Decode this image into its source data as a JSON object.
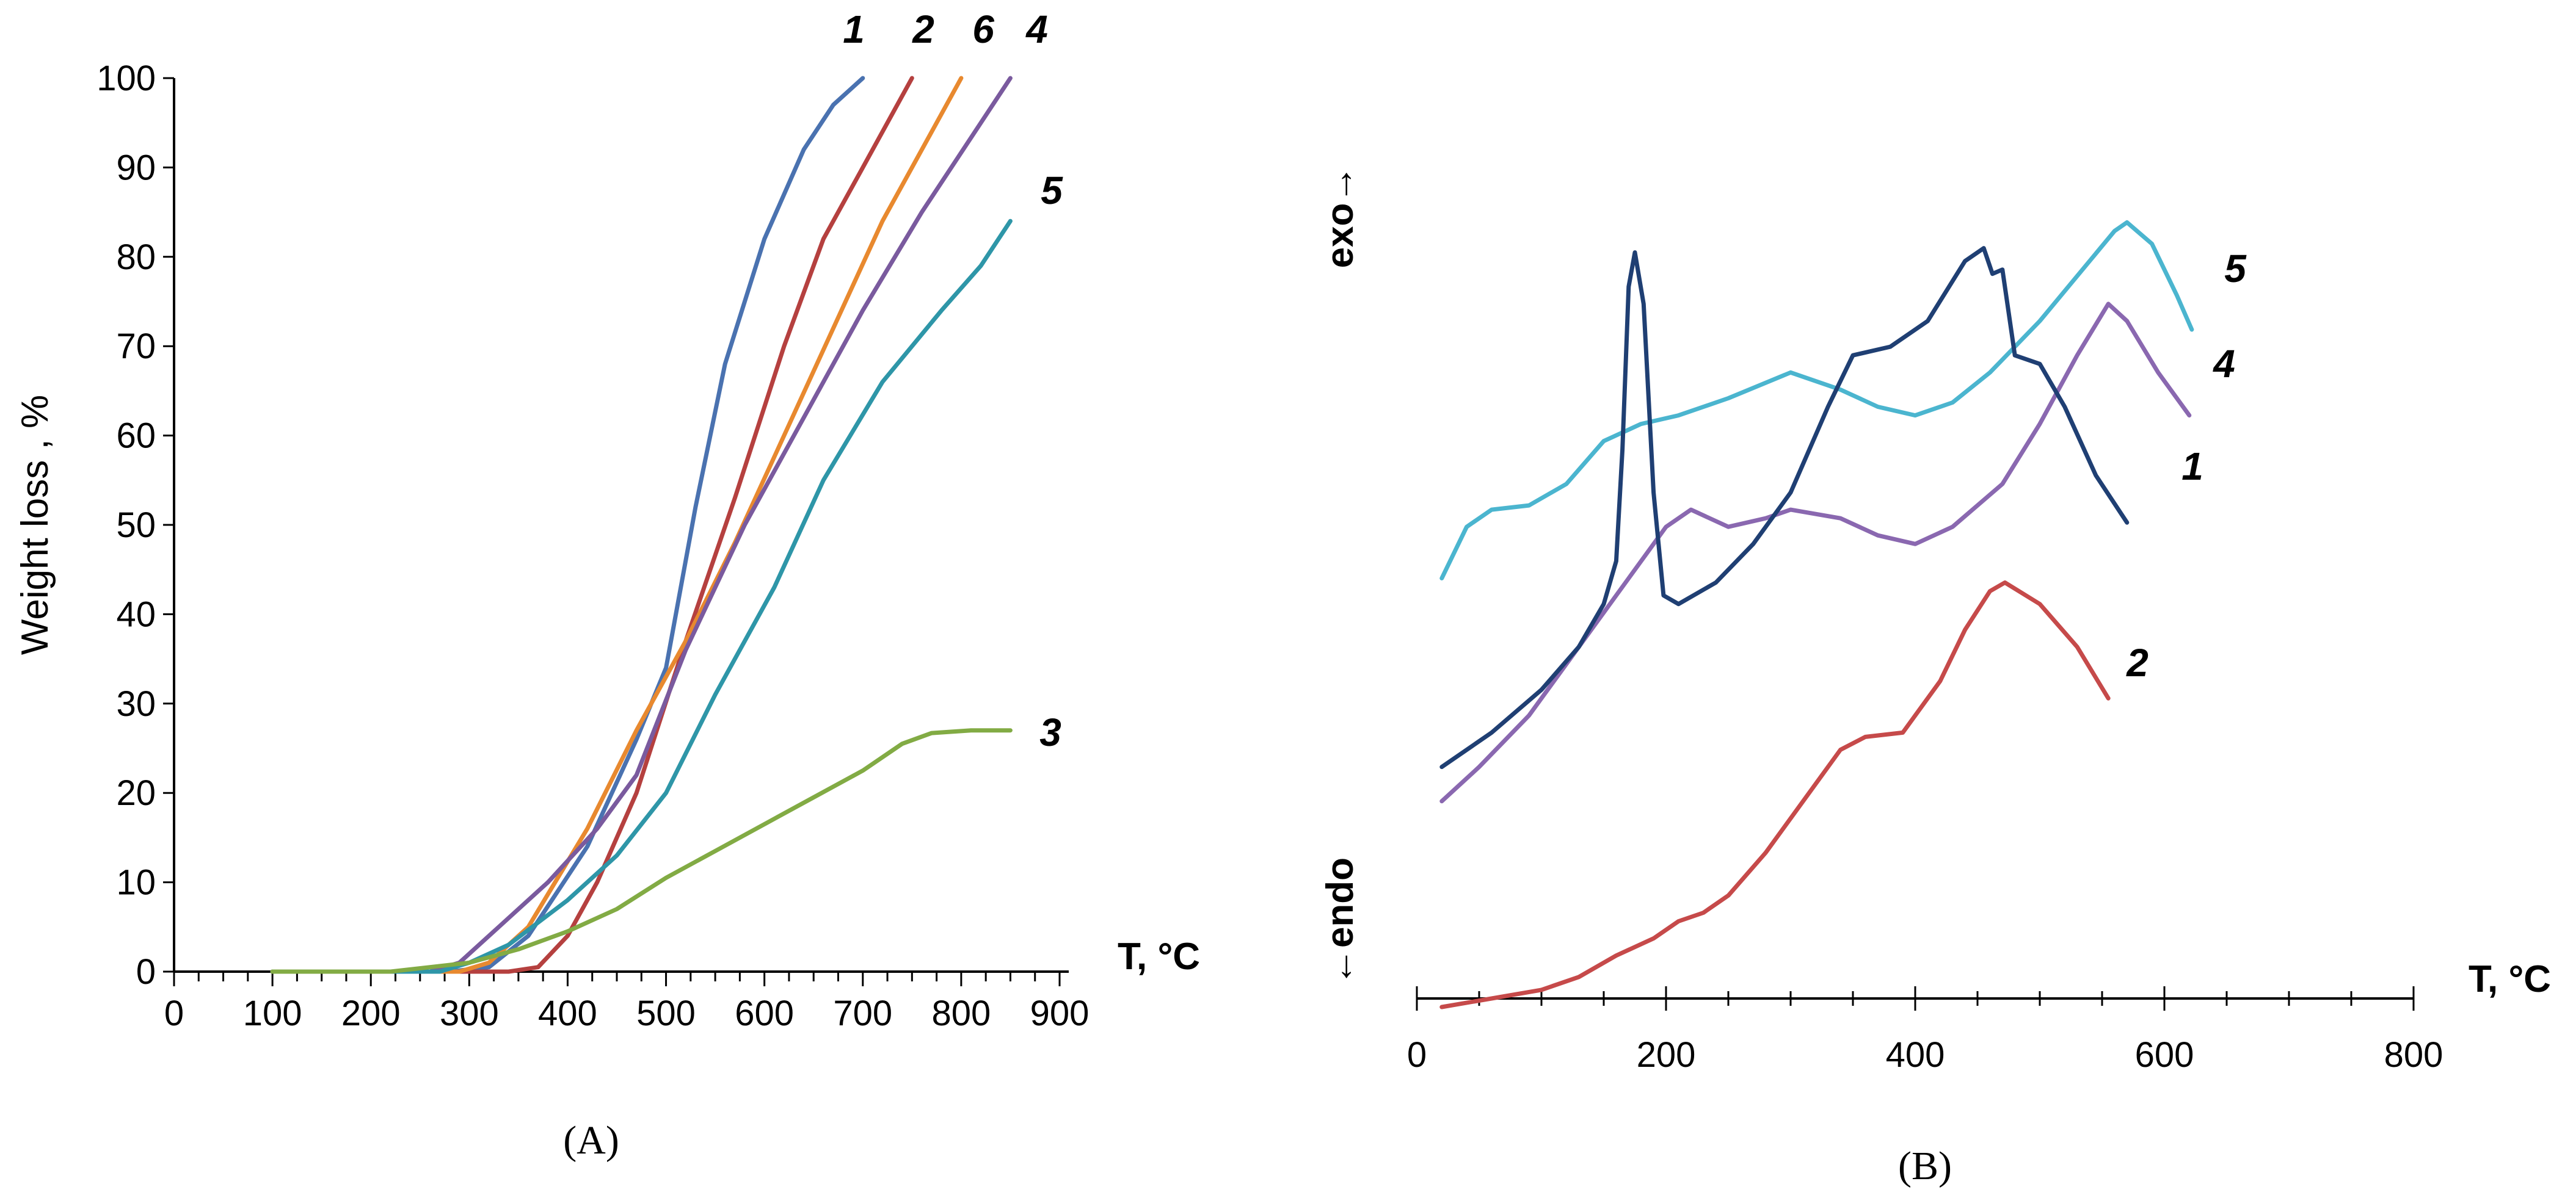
{
  "chart_data": [
    {
      "panel": "(A)",
      "type": "line",
      "title": "",
      "xlabel": "T, °C",
      "ylabel": "Weight loss , %",
      "xlim": [
        0,
        900
      ],
      "ylim": [
        0,
        100
      ],
      "x_ticks": [
        0,
        100,
        200,
        300,
        400,
        500,
        600,
        700,
        800,
        900
      ],
      "y_ticks": [
        0,
        10,
        20,
        30,
        40,
        50,
        60,
        70,
        80,
        90,
        100
      ],
      "grid": false,
      "series": [
        {
          "name": "1",
          "color": "#4a72b0",
          "points": [
            [
              100,
              0
            ],
            [
              280,
              0
            ],
            [
              320,
              0.5
            ],
            [
              360,
              4
            ],
            [
              420,
              14
            ],
            [
              470,
              26
            ],
            [
              500,
              34
            ],
            [
              530,
              52
            ],
            [
              560,
              68
            ],
            [
              600,
              82
            ],
            [
              640,
              92
            ],
            [
              670,
              97
            ],
            [
              700,
              100
            ]
          ]
        },
        {
          "name": "2",
          "color": "#b5403f",
          "points": [
            [
              100,
              0
            ],
            [
              340,
              0
            ],
            [
              370,
              0.5
            ],
            [
              400,
              4
            ],
            [
              430,
              10
            ],
            [
              470,
              20
            ],
            [
              520,
              37
            ],
            [
              570,
              53
            ],
            [
              620,
              70
            ],
            [
              660,
              82
            ],
            [
              700,
              90
            ],
            [
              730,
              96
            ],
            [
              750,
              100
            ]
          ]
        },
        {
          "name": "6",
          "color": "#e8892f",
          "points": [
            [
              100,
              0
            ],
            [
              290,
              0
            ],
            [
              320,
              1
            ],
            [
              360,
              5
            ],
            [
              420,
              16
            ],
            [
              470,
              27
            ],
            [
              520,
              37
            ],
            [
              570,
              48
            ],
            [
              620,
              60
            ],
            [
              670,
              72
            ],
            [
              720,
              84
            ],
            [
              770,
              94
            ],
            [
              800,
              100
            ]
          ]
        },
        {
          "name": "4",
          "color": "#7a5a9e",
          "points": [
            [
              100,
              0
            ],
            [
              260,
              0
            ],
            [
              290,
              1
            ],
            [
              330,
              5
            ],
            [
              380,
              10
            ],
            [
              430,
              16
            ],
            [
              470,
              22
            ],
            [
              520,
              36
            ],
            [
              580,
              50
            ],
            [
              640,
              62
            ],
            [
              700,
              74
            ],
            [
              760,
              85
            ],
            [
              820,
              95
            ],
            [
              850,
              100
            ]
          ]
        },
        {
          "name": "5",
          "color": "#2e96a8",
          "points": [
            [
              100,
              0
            ],
            [
              270,
              0
            ],
            [
              300,
              1
            ],
            [
              340,
              3
            ],
            [
              400,
              8
            ],
            [
              450,
              13
            ],
            [
              500,
              20
            ],
            [
              550,
              31
            ],
            [
              610,
              43
            ],
            [
              660,
              55
            ],
            [
              720,
              66
            ],
            [
              780,
              74
            ],
            [
              820,
              79
            ],
            [
              850,
              84
            ]
          ]
        },
        {
          "name": "3",
          "color": "#82ab44",
          "points": [
            [
              100,
              0
            ],
            [
              220,
              0
            ],
            [
              260,
              0.5
            ],
            [
              300,
              1
            ],
            [
              350,
              2.5
            ],
            [
              400,
              4.5
            ],
            [
              450,
              7
            ],
            [
              500,
              10.5
            ],
            [
              550,
              13.5
            ],
            [
              600,
              16.5
            ],
            [
              650,
              19.5
            ],
            [
              700,
              22.5
            ],
            [
              740,
              25.5
            ],
            [
              770,
              26.7
            ],
            [
              810,
              27
            ],
            [
              850,
              27
            ]
          ]
        }
      ],
      "series_labels": [
        "1",
        "2",
        "6",
        "4",
        "5",
        "3"
      ]
    },
    {
      "panel": "(B)",
      "type": "line",
      "title": "",
      "xlabel": "T, °C",
      "ylabel_top": "exo→",
      "ylabel_bottom": "←endo",
      "xlim": [
        0,
        800
      ],
      "y_units": "relative (DTA signal, no scale)",
      "ylim": [
        0,
        100
      ],
      "x_ticks": [
        0,
        200,
        400,
        600,
        800
      ],
      "x_minor_tick_step": 50,
      "grid": false,
      "series": [
        {
          "name": "5",
          "color": "#4bb5cf",
          "points": [
            [
              20,
              50
            ],
            [
              40,
              56
            ],
            [
              60,
              58
            ],
            [
              90,
              58.5
            ],
            [
              120,
              61
            ],
            [
              150,
              66
            ],
            [
              180,
              68
            ],
            [
              210,
              69
            ],
            [
              250,
              71
            ],
            [
              300,
              74
            ],
            [
              340,
              72
            ],
            [
              370,
              70
            ],
            [
              400,
              69
            ],
            [
              430,
              70.5
            ],
            [
              460,
              74
            ],
            [
              500,
              80
            ],
            [
              540,
              87
            ],
            [
              560,
              90.5
            ],
            [
              570,
              91.5
            ],
            [
              590,
              89
            ],
            [
              610,
              83
            ],
            [
              622,
              79
            ]
          ]
        },
        {
          "name": "4",
          "color": "#8a68b0",
          "points": [
            [
              20,
              24
            ],
            [
              50,
              28
            ],
            [
              90,
              34
            ],
            [
              130,
              42
            ],
            [
              170,
              50
            ],
            [
              200,
              56
            ],
            [
              220,
              58
            ],
            [
              250,
              56
            ],
            [
              280,
              57
            ],
            [
              300,
              58
            ],
            [
              340,
              57
            ],
            [
              370,
              55
            ],
            [
              400,
              54
            ],
            [
              430,
              56
            ],
            [
              470,
              61
            ],
            [
              500,
              68
            ],
            [
              530,
              76
            ],
            [
              555,
              82
            ],
            [
              570,
              80
            ],
            [
              595,
              74
            ],
            [
              620,
              69
            ]
          ]
        },
        {
          "name": "1",
          "color": "#1f3f73",
          "points": [
            [
              20,
              28
            ],
            [
              60,
              32
            ],
            [
              100,
              37
            ],
            [
              130,
              42
            ],
            [
              150,
              47
            ],
            [
              160,
              52
            ],
            [
              165,
              65
            ],
            [
              170,
              84
            ],
            [
              175,
              88
            ],
            [
              182,
              82
            ],
            [
              190,
              60
            ],
            [
              198,
              48
            ],
            [
              210,
              47
            ],
            [
              240,
              49.5
            ],
            [
              270,
              54
            ],
            [
              300,
              60
            ],
            [
              330,
              70
            ],
            [
              350,
              76
            ],
            [
              380,
              77
            ],
            [
              410,
              80
            ],
            [
              440,
              87
            ],
            [
              455,
              88.5
            ],
            [
              462,
              85.5
            ],
            [
              470,
              86
            ],
            [
              480,
              76
            ],
            [
              500,
              75
            ],
            [
              520,
              70
            ],
            [
              545,
              62
            ],
            [
              570,
              56.5
            ]
          ]
        },
        {
          "name": "2",
          "color": "#c64a4a",
          "points": [
            [
              20,
              0
            ],
            [
              60,
              1
            ],
            [
              100,
              2
            ],
            [
              130,
              3.5
            ],
            [
              160,
              6
            ],
            [
              190,
              8
            ],
            [
              210,
              10
            ],
            [
              230,
              11
            ],
            [
              250,
              13
            ],
            [
              280,
              18
            ],
            [
              310,
              24
            ],
            [
              340,
              30
            ],
            [
              360,
              31.5
            ],
            [
              390,
              32
            ],
            [
              420,
              38
            ],
            [
              440,
              44
            ],
            [
              460,
              48.5
            ],
            [
              472,
              49.5
            ],
            [
              500,
              47
            ],
            [
              530,
              42
            ],
            [
              555,
              36
            ]
          ]
        }
      ],
      "series_labels": [
        "5",
        "4",
        "1",
        "2"
      ]
    }
  ]
}
